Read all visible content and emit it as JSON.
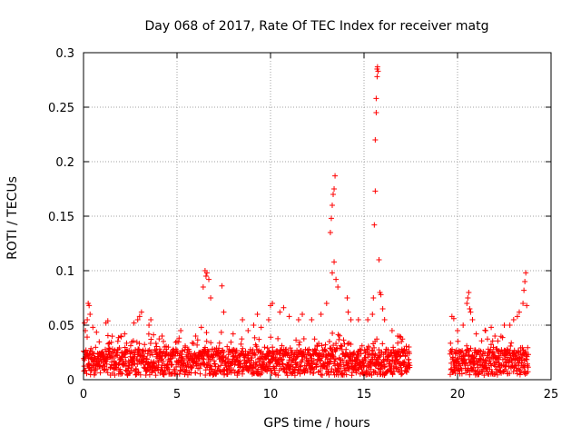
{
  "chart_data": {
    "type": "scatter",
    "title": "Day 068 of 2017, Rate Of TEC Index for receiver matg",
    "xlabel": "GPS time / hours",
    "ylabel": "ROTI / TECUs",
    "xlim": [
      0,
      25
    ],
    "ylim": [
      0,
      0.3
    ],
    "xticks": [
      0,
      5,
      10,
      15,
      20,
      25
    ],
    "yticks": [
      0,
      0.05,
      0.1,
      0.15,
      0.2,
      0.25,
      0.3
    ],
    "xtick_labels": [
      "0",
      "5",
      "10",
      "15",
      "20",
      "25"
    ],
    "ytick_labels": [
      "0",
      "0.05",
      "0.1",
      "0.15",
      "0.2",
      "0.25",
      "0.3"
    ],
    "grid": true,
    "marker": "+",
    "color": "#ff0000",
    "series": [
      {
        "name": "ROTI",
        "note": "Dense baseline band of roughly 0.005-0.04 TECU/min for 0-17.5 h and 19.6-23.8 h (data gap ~17.5-19.6 h); listed points are the visible peaks/outliers.",
        "points": [
          [
            0.05,
            0.052
          ],
          [
            0.1,
            0.045
          ],
          [
            0.2,
            0.055
          ],
          [
            0.25,
            0.07
          ],
          [
            0.3,
            0.068
          ],
          [
            0.35,
            0.06
          ],
          [
            0.5,
            0.048
          ],
          [
            1.2,
            0.052
          ],
          [
            1.3,
            0.054
          ],
          [
            2.0,
            0.04
          ],
          [
            2.2,
            0.042
          ],
          [
            2.7,
            0.052
          ],
          [
            2.9,
            0.055
          ],
          [
            3.0,
            0.058
          ],
          [
            3.1,
            0.062
          ],
          [
            3.5,
            0.05
          ],
          [
            3.6,
            0.055
          ],
          [
            4.2,
            0.04
          ],
          [
            5.0,
            0.035
          ],
          [
            5.2,
            0.045
          ],
          [
            6.0,
            0.04
          ],
          [
            6.3,
            0.048
          ],
          [
            6.4,
            0.085
          ],
          [
            6.5,
            0.1
          ],
          [
            6.55,
            0.095
          ],
          [
            6.6,
            0.098
          ],
          [
            6.7,
            0.092
          ],
          [
            6.8,
            0.075
          ],
          [
            7.4,
            0.086
          ],
          [
            7.5,
            0.062
          ],
          [
            8.0,
            0.042
          ],
          [
            8.5,
            0.055
          ],
          [
            8.8,
            0.045
          ],
          [
            9.1,
            0.05
          ],
          [
            9.3,
            0.06
          ],
          [
            9.5,
            0.048
          ],
          [
            9.9,
            0.055
          ],
          [
            10.0,
            0.068
          ],
          [
            10.1,
            0.07
          ],
          [
            10.5,
            0.062
          ],
          [
            10.7,
            0.066
          ],
          [
            11.0,
            0.058
          ],
          [
            11.5,
            0.055
          ],
          [
            11.7,
            0.06
          ],
          [
            12.2,
            0.055
          ],
          [
            12.7,
            0.06
          ],
          [
            13.0,
            0.07
          ],
          [
            13.2,
            0.135
          ],
          [
            13.25,
            0.148
          ],
          [
            13.3,
            0.16
          ],
          [
            13.35,
            0.17
          ],
          [
            13.4,
            0.175
          ],
          [
            13.45,
            0.187
          ],
          [
            13.3,
            0.098
          ],
          [
            13.4,
            0.108
          ],
          [
            13.5,
            0.092
          ],
          [
            13.6,
            0.085
          ],
          [
            14.1,
            0.075
          ],
          [
            14.15,
            0.062
          ],
          [
            14.3,
            0.055
          ],
          [
            14.7,
            0.055
          ],
          [
            15.2,
            0.055
          ],
          [
            15.45,
            0.06
          ],
          [
            15.5,
            0.075
          ],
          [
            15.55,
            0.142
          ],
          [
            15.6,
            0.173
          ],
          [
            15.6,
            0.22
          ],
          [
            15.65,
            0.245
          ],
          [
            15.65,
            0.258
          ],
          [
            15.7,
            0.278
          ],
          [
            15.7,
            0.285
          ],
          [
            15.72,
            0.287
          ],
          [
            15.75,
            0.283
          ],
          [
            15.8,
            0.11
          ],
          [
            15.85,
            0.08
          ],
          [
            15.9,
            0.078
          ],
          [
            16.0,
            0.065
          ],
          [
            16.1,
            0.055
          ],
          [
            16.5,
            0.045
          ],
          [
            16.8,
            0.04
          ],
          [
            17.0,
            0.035
          ],
          [
            17.4,
            0.03
          ],
          [
            19.7,
            0.058
          ],
          [
            19.8,
            0.056
          ],
          [
            20.0,
            0.045
          ],
          [
            20.3,
            0.05
          ],
          [
            20.5,
            0.07
          ],
          [
            20.55,
            0.075
          ],
          [
            20.6,
            0.08
          ],
          [
            20.65,
            0.065
          ],
          [
            20.7,
            0.062
          ],
          [
            20.8,
            0.055
          ],
          [
            21.0,
            0.042
          ],
          [
            21.5,
            0.045
          ],
          [
            21.8,
            0.048
          ],
          [
            22.0,
            0.04
          ],
          [
            22.5,
            0.05
          ],
          [
            22.8,
            0.05
          ],
          [
            23.0,
            0.055
          ],
          [
            23.2,
            0.058
          ],
          [
            23.3,
            0.062
          ],
          [
            23.5,
            0.07
          ],
          [
            23.55,
            0.082
          ],
          [
            23.6,
            0.09
          ],
          [
            23.65,
            0.098
          ],
          [
            23.7,
            0.068
          ]
        ]
      }
    ]
  }
}
